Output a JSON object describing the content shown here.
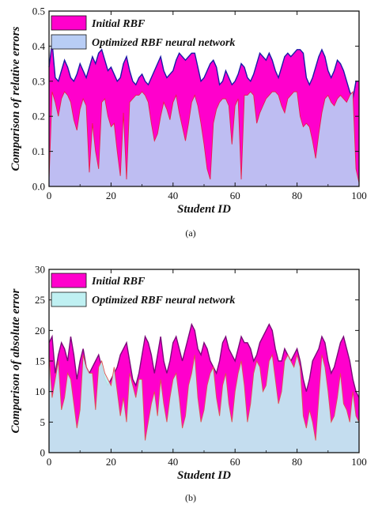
{
  "chart_data": [
    {
      "type": "area",
      "panel_label": "(a)",
      "xlabel": "Student ID",
      "ylabel": "Comparison of relative errors",
      "xlim": [
        0,
        100
      ],
      "ylim": [
        0,
        0.5
      ],
      "xticks": [
        0,
        20,
        40,
        60,
        80,
        100
      ],
      "yticks": [
        0.0,
        0.1,
        0.2,
        0.3,
        0.4,
        0.5
      ],
      "ytick_labels": [
        "0.0",
        "0.1",
        "0.2",
        "0.3",
        "0.4",
        "0.5"
      ],
      "legend_position": "top-left",
      "series": [
        {
          "name": "Initial RBF",
          "fill_color": "#ff00cc",
          "line_color": "#1a1aa8",
          "x": [
            0,
            1,
            2,
            3,
            4,
            5,
            6,
            7,
            8,
            9,
            10,
            11,
            12,
            13,
            14,
            15,
            16,
            17,
            18,
            19,
            20,
            21,
            22,
            23,
            24,
            25,
            26,
            27,
            28,
            29,
            30,
            31,
            32,
            33,
            34,
            35,
            36,
            37,
            38,
            39,
            40,
            41,
            42,
            43,
            44,
            45,
            46,
            47,
            48,
            49,
            50,
            51,
            52,
            53,
            54,
            55,
            56,
            57,
            58,
            59,
            60,
            61,
            62,
            63,
            64,
            65,
            66,
            67,
            68,
            69,
            70,
            71,
            72,
            73,
            74,
            75,
            76,
            77,
            78,
            79,
            80,
            81,
            82,
            83,
            84,
            85,
            86,
            87,
            88,
            89,
            90,
            91,
            92,
            93,
            94,
            95,
            96,
            97,
            98,
            99,
            100
          ],
          "values": [
            0.34,
            0.41,
            0.31,
            0.3,
            0.33,
            0.36,
            0.34,
            0.31,
            0.3,
            0.32,
            0.35,
            0.33,
            0.31,
            0.34,
            0.37,
            0.35,
            0.38,
            0.39,
            0.36,
            0.33,
            0.34,
            0.32,
            0.3,
            0.31,
            0.35,
            0.37,
            0.33,
            0.3,
            0.29,
            0.31,
            0.32,
            0.3,
            0.29,
            0.31,
            0.33,
            0.35,
            0.37,
            0.33,
            0.31,
            0.32,
            0.33,
            0.36,
            0.38,
            0.37,
            0.36,
            0.37,
            0.38,
            0.38,
            0.34,
            0.3,
            0.31,
            0.33,
            0.35,
            0.36,
            0.34,
            0.29,
            0.3,
            0.33,
            0.31,
            0.29,
            0.3,
            0.32,
            0.35,
            0.34,
            0.31,
            0.3,
            0.32,
            0.35,
            0.38,
            0.37,
            0.36,
            0.38,
            0.36,
            0.33,
            0.31,
            0.34,
            0.37,
            0.38,
            0.37,
            0.38,
            0.39,
            0.39,
            0.38,
            0.31,
            0.29,
            0.31,
            0.34,
            0.37,
            0.39,
            0.37,
            0.33,
            0.31,
            0.33,
            0.36,
            0.35,
            0.33,
            0.3,
            0.27,
            0.25,
            0.3,
            0.3
          ]
        },
        {
          "name": "Optimized RBF neural network",
          "fill_color": "#b8cdf5",
          "line_color": "#e8204a",
          "x": [
            0,
            1,
            2,
            3,
            4,
            5,
            6,
            7,
            8,
            9,
            10,
            11,
            12,
            13,
            14,
            15,
            16,
            17,
            18,
            19,
            20,
            21,
            22,
            23,
            24,
            25,
            26,
            27,
            28,
            29,
            30,
            31,
            32,
            33,
            34,
            35,
            36,
            37,
            38,
            39,
            40,
            41,
            42,
            43,
            44,
            45,
            46,
            47,
            48,
            49,
            50,
            51,
            52,
            53,
            54,
            55,
            56,
            57,
            58,
            59,
            60,
            61,
            62,
            63,
            64,
            65,
            66,
            67,
            68,
            69,
            70,
            71,
            72,
            73,
            74,
            75,
            76,
            77,
            78,
            79,
            80,
            81,
            82,
            83,
            84,
            85,
            86,
            87,
            88,
            89,
            90,
            91,
            92,
            93,
            94,
            95,
            96,
            97,
            98,
            99,
            100
          ],
          "values": [
            0.02,
            0.27,
            0.24,
            0.2,
            0.25,
            0.27,
            0.26,
            0.24,
            0.19,
            0.16,
            0.22,
            0.25,
            0.23,
            0.04,
            0.18,
            0.1,
            0.05,
            0.24,
            0.25,
            0.2,
            0.17,
            0.18,
            0.1,
            0.03,
            0.21,
            0.02,
            0.24,
            0.25,
            0.26,
            0.26,
            0.27,
            0.26,
            0.24,
            0.18,
            0.13,
            0.15,
            0.2,
            0.24,
            0.22,
            0.19,
            0.24,
            0.26,
            0.21,
            0.17,
            0.13,
            0.18,
            0.24,
            0.26,
            0.23,
            0.18,
            0.12,
            0.05,
            0.02,
            0.18,
            0.22,
            0.24,
            0.25,
            0.25,
            0.23,
            0.12,
            0.23,
            0.25,
            0.02,
            0.26,
            0.26,
            0.27,
            0.26,
            0.18,
            0.21,
            0.23,
            0.25,
            0.26,
            0.27,
            0.27,
            0.26,
            0.23,
            0.21,
            0.25,
            0.26,
            0.27,
            0.27,
            0.2,
            0.17,
            0.18,
            0.17,
            0.13,
            0.08,
            0.15,
            0.21,
            0.25,
            0.26,
            0.24,
            0.23,
            0.25,
            0.26,
            0.25,
            0.24,
            0.26,
            0.27,
            0.05,
            0.01
          ]
        }
      ]
    },
    {
      "type": "area",
      "panel_label": "(b)",
      "xlabel": "Student ID",
      "ylabel": "Comparison of absolute error",
      "xlim": [
        0,
        100
      ],
      "ylim": [
        0,
        30
      ],
      "xticks": [
        0,
        20,
        40,
        60,
        80,
        100
      ],
      "yticks": [
        0,
        5,
        10,
        15,
        20,
        25,
        30
      ],
      "ytick_labels": [
        "0",
        "5",
        "10",
        "15",
        "20",
        "25",
        "30"
      ],
      "legend_position": "top-left",
      "series": [
        {
          "name": "Initial RBF",
          "fill_color": "#ff00cc",
          "line_color": "#7a0a7a",
          "x": [
            0,
            1,
            2,
            3,
            4,
            5,
            6,
            7,
            8,
            9,
            10,
            11,
            12,
            13,
            14,
            15,
            16,
            17,
            18,
            19,
            20,
            21,
            22,
            23,
            24,
            25,
            26,
            27,
            28,
            29,
            30,
            31,
            32,
            33,
            34,
            35,
            36,
            37,
            38,
            39,
            40,
            41,
            42,
            43,
            44,
            45,
            46,
            47,
            48,
            49,
            50,
            51,
            52,
            53,
            54,
            55,
            56,
            57,
            58,
            59,
            60,
            61,
            62,
            63,
            64,
            65,
            66,
            67,
            68,
            69,
            70,
            71,
            72,
            73,
            74,
            75,
            76,
            77,
            78,
            79,
            80,
            81,
            82,
            83,
            84,
            85,
            86,
            87,
            88,
            89,
            90,
            91,
            92,
            93,
            94,
            95,
            96,
            97,
            98,
            99,
            100
          ],
          "values": [
            18,
            19,
            13,
            16,
            18,
            17,
            15,
            19,
            16,
            12,
            15,
            17,
            14,
            13,
            14,
            15,
            16,
            14,
            12,
            11,
            12,
            13,
            14,
            16,
            17,
            18,
            15,
            12,
            11,
            13,
            16,
            19,
            18,
            16,
            13,
            16,
            19,
            15,
            13,
            15,
            18,
            19,
            17,
            15,
            17,
            19,
            21,
            20,
            17,
            16,
            18,
            17,
            15,
            14,
            13,
            15,
            18,
            19,
            17,
            16,
            15,
            17,
            19,
            18,
            18,
            17,
            15,
            16,
            18,
            19,
            20,
            21,
            20,
            17,
            15,
            15,
            17,
            16,
            15,
            16,
            17,
            15,
            12,
            10,
            12,
            15,
            16,
            17,
            19,
            18,
            15,
            13,
            14,
            16,
            18,
            19,
            17,
            15,
            12,
            10,
            9
          ]
        },
        {
          "name": "Optimized RBF neural network",
          "fill_color": "#bff0f2",
          "line_color": "#e05050",
          "x": [
            0,
            1,
            2,
            3,
            4,
            5,
            6,
            7,
            8,
            9,
            10,
            11,
            12,
            13,
            14,
            15,
            16,
            17,
            18,
            19,
            20,
            21,
            22,
            23,
            24,
            25,
            26,
            27,
            28,
            29,
            30,
            31,
            32,
            33,
            34,
            35,
            36,
            37,
            38,
            39,
            40,
            41,
            42,
            43,
            44,
            45,
            46,
            47,
            48,
            49,
            50,
            51,
            52,
            53,
            54,
            55,
            56,
            57,
            58,
            59,
            60,
            61,
            62,
            63,
            64,
            65,
            66,
            67,
            68,
            69,
            70,
            71,
            72,
            73,
            74,
            75,
            76,
            77,
            78,
            79,
            80,
            81,
            82,
            83,
            84,
            85,
            86,
            87,
            88,
            89,
            90,
            91,
            92,
            93,
            94,
            95,
            96,
            97,
            98,
            99,
            100
          ],
          "values": [
            16,
            9,
            12,
            15,
            7,
            9,
            13,
            12,
            8,
            4,
            7,
            16,
            14,
            13,
            13,
            7,
            14,
            15,
            13,
            12,
            11,
            14,
            10,
            6,
            9,
            5,
            13,
            11,
            9,
            12,
            12,
            2,
            5,
            8,
            10,
            6,
            12,
            8,
            5,
            9,
            12,
            13,
            9,
            4,
            6,
            11,
            13,
            16,
            9,
            5,
            7,
            11,
            13,
            14,
            9,
            6,
            11,
            13,
            8,
            5,
            10,
            13,
            15,
            11,
            5,
            8,
            13,
            15,
            14,
            10,
            11,
            15,
            16,
            12,
            8,
            10,
            15,
            16,
            15,
            14,
            16,
            14,
            6,
            4,
            7,
            5,
            2,
            9,
            16,
            14,
            10,
            5,
            6,
            9,
            13,
            8,
            7,
            5,
            10,
            6,
            5
          ]
        }
      ]
    }
  ]
}
